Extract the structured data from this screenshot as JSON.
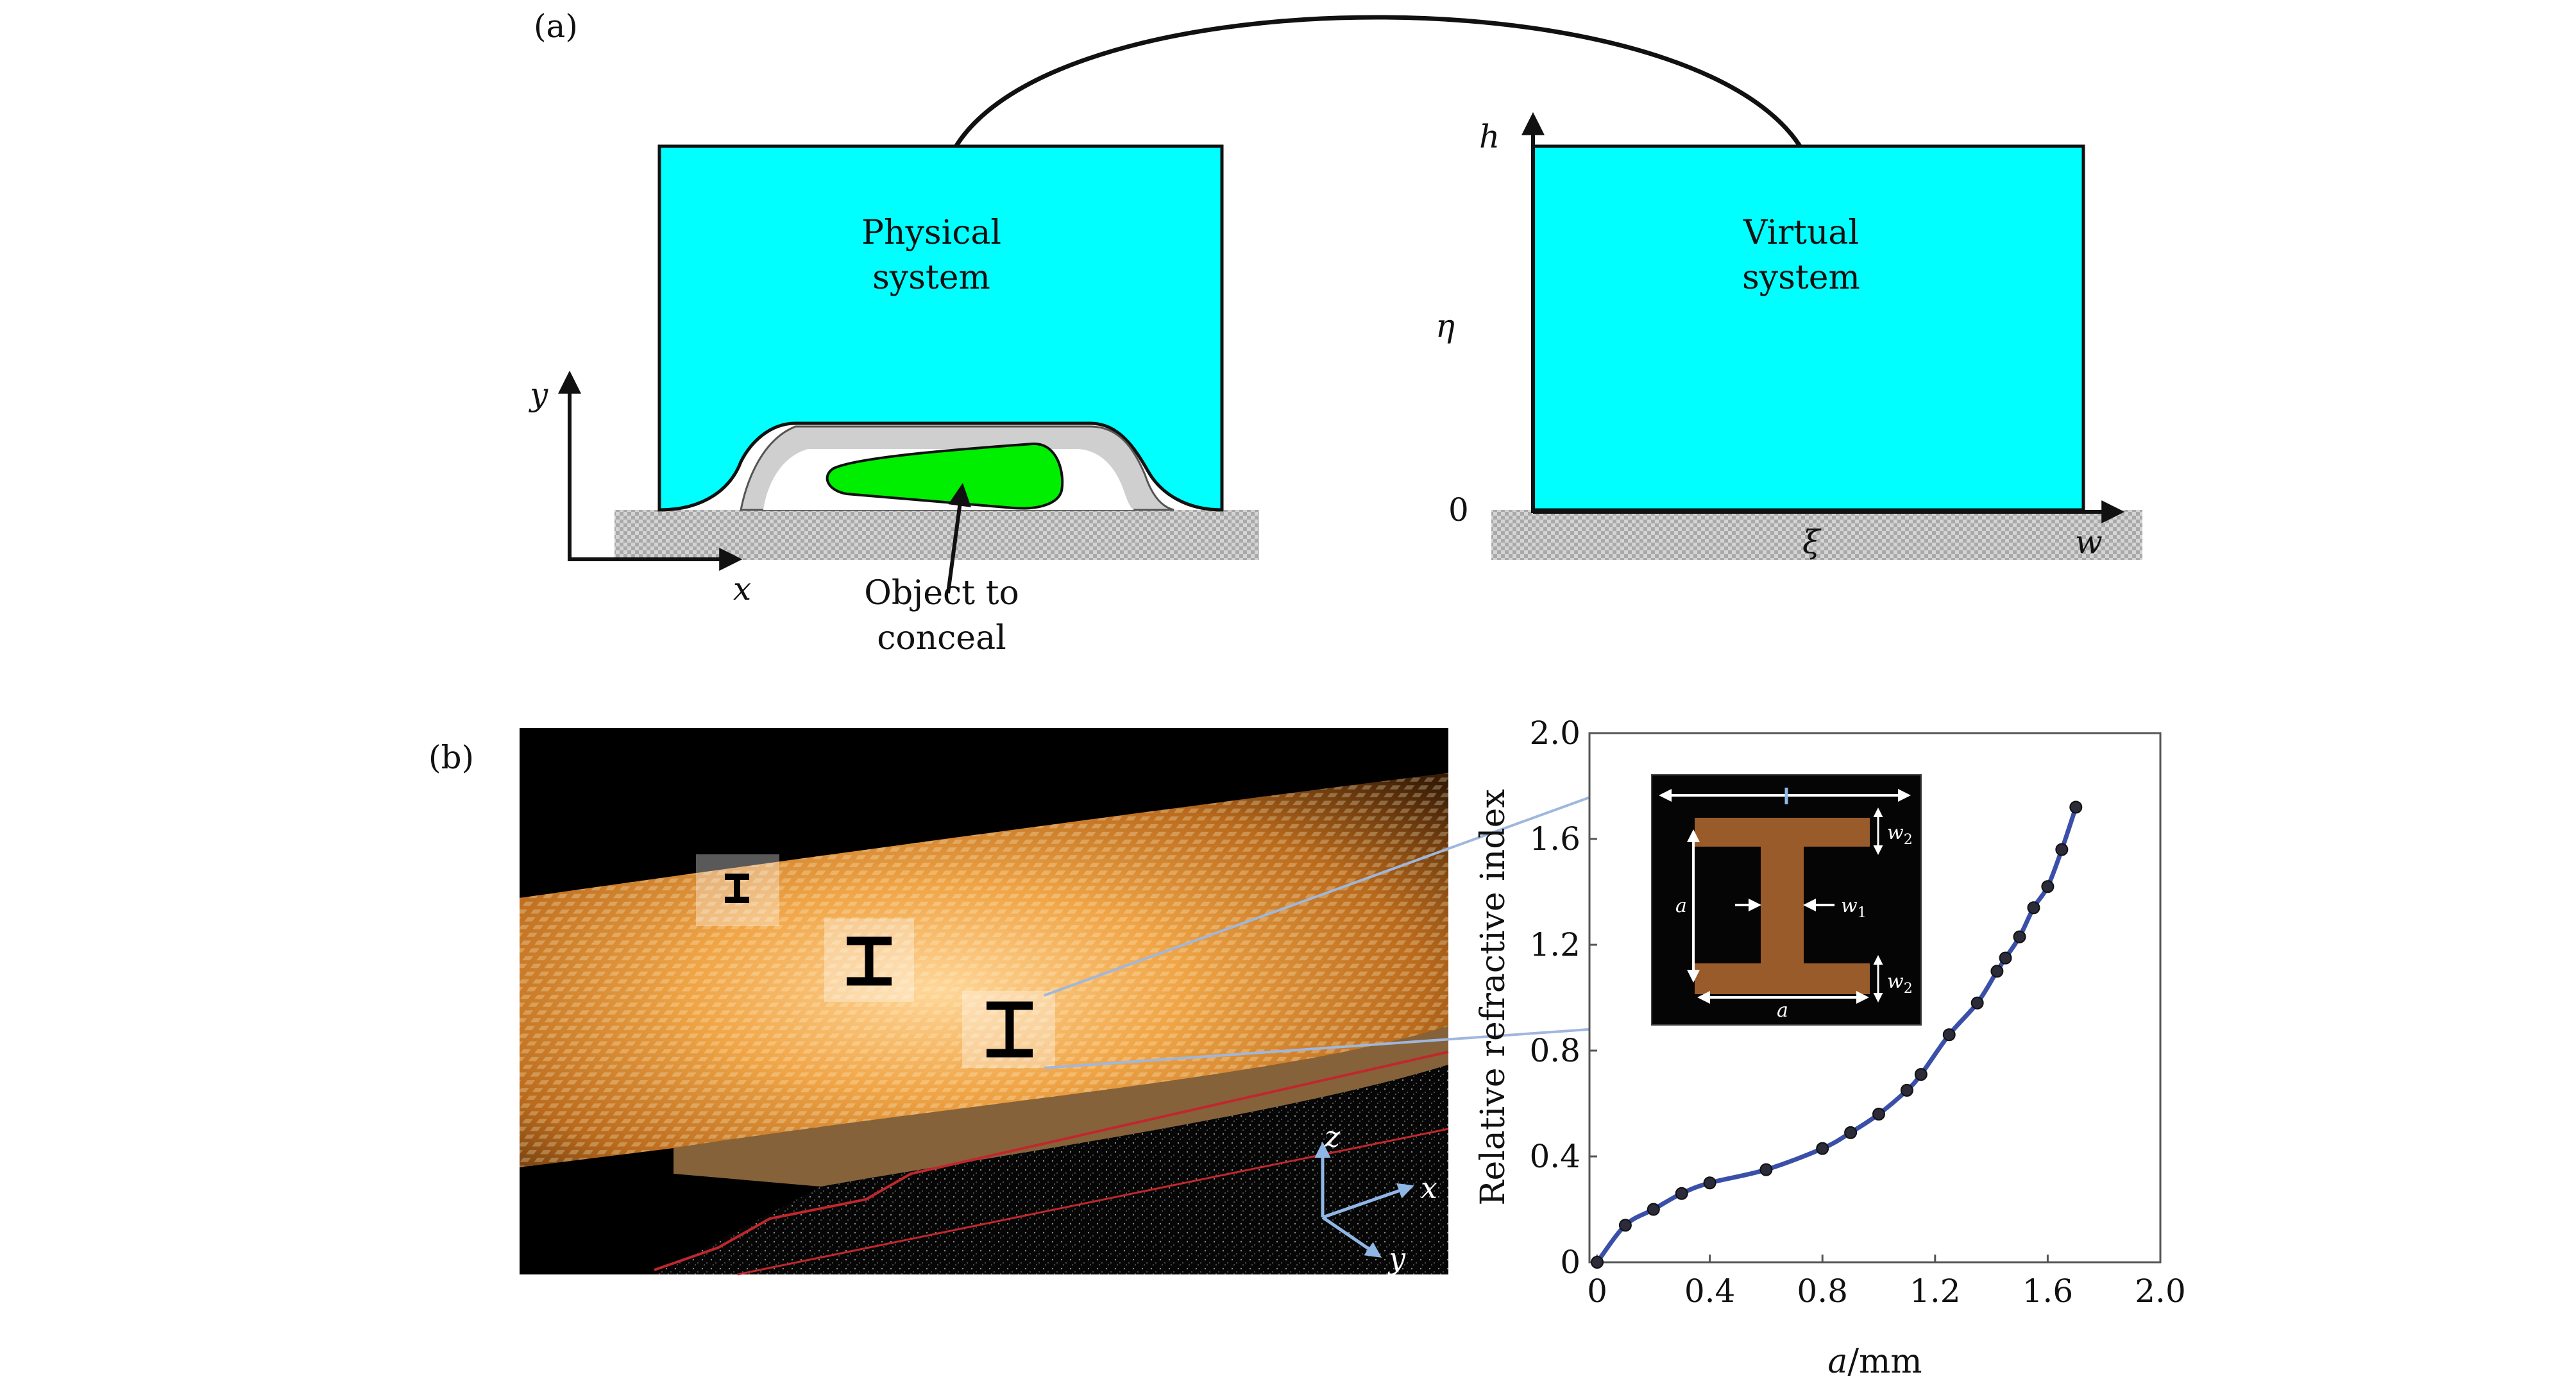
{
  "panel_a": {
    "label": "(a)",
    "physical_line1": "Physical",
    "physical_line2": "system",
    "virtual_line1": "Virtual",
    "virtual_line2": "system",
    "object_line1": "Object to",
    "object_line2": "conceal",
    "axis_x": "x",
    "axis_y": "y",
    "axis_h": "h",
    "axis_eta": "η",
    "axis_zero": "0",
    "axis_xi": "ξ",
    "axis_w": "w",
    "colors": {
      "system_fill": "#00ffff",
      "object_fill": "#00ee00",
      "substrate": "#c8c8c8"
    }
  },
  "panel_b": {
    "label": "(b)",
    "photo_axes": {
      "z": "z",
      "x": "x",
      "y": "y"
    },
    "inset": {
      "a_left": "a",
      "a_bottom": "a",
      "w1": "w",
      "w1_sub": "1",
      "w2_top": "w",
      "w2_top_sub": "2",
      "w2_bottom": "w",
      "w2_bottom_sub": "2",
      "colors": {
        "background": "#050505",
        "metal": "#9a5b2a"
      }
    }
  },
  "chart_data": {
    "type": "line",
    "xlabel_var": "a",
    "xlabel_unit": "/mm",
    "ylabel": "Relative refractive index",
    "xlim": [
      0,
      2.0
    ],
    "ylim": [
      0,
      2.0
    ],
    "xticks": [
      "0",
      "0.4",
      "0.8",
      "1.2",
      "1.6",
      "2.0"
    ],
    "yticks": [
      "0",
      "0.4",
      "0.8",
      "1.2",
      "1.6",
      "2.0"
    ],
    "grid": false,
    "line_color": "#3a4fa8",
    "x": [
      0,
      0.1,
      0.2,
      0.3,
      0.4,
      0.6,
      0.8,
      0.9,
      1.0,
      1.1,
      1.15,
      1.25,
      1.35,
      1.42,
      1.45,
      1.5,
      1.55,
      1.6,
      1.65,
      1.7
    ],
    "y": [
      0,
      0.14,
      0.2,
      0.26,
      0.3,
      0.35,
      0.43,
      0.49,
      0.56,
      0.65,
      0.71,
      0.86,
      0.98,
      1.1,
      1.15,
      1.23,
      1.34,
      1.42,
      1.56,
      1.72
    ]
  }
}
